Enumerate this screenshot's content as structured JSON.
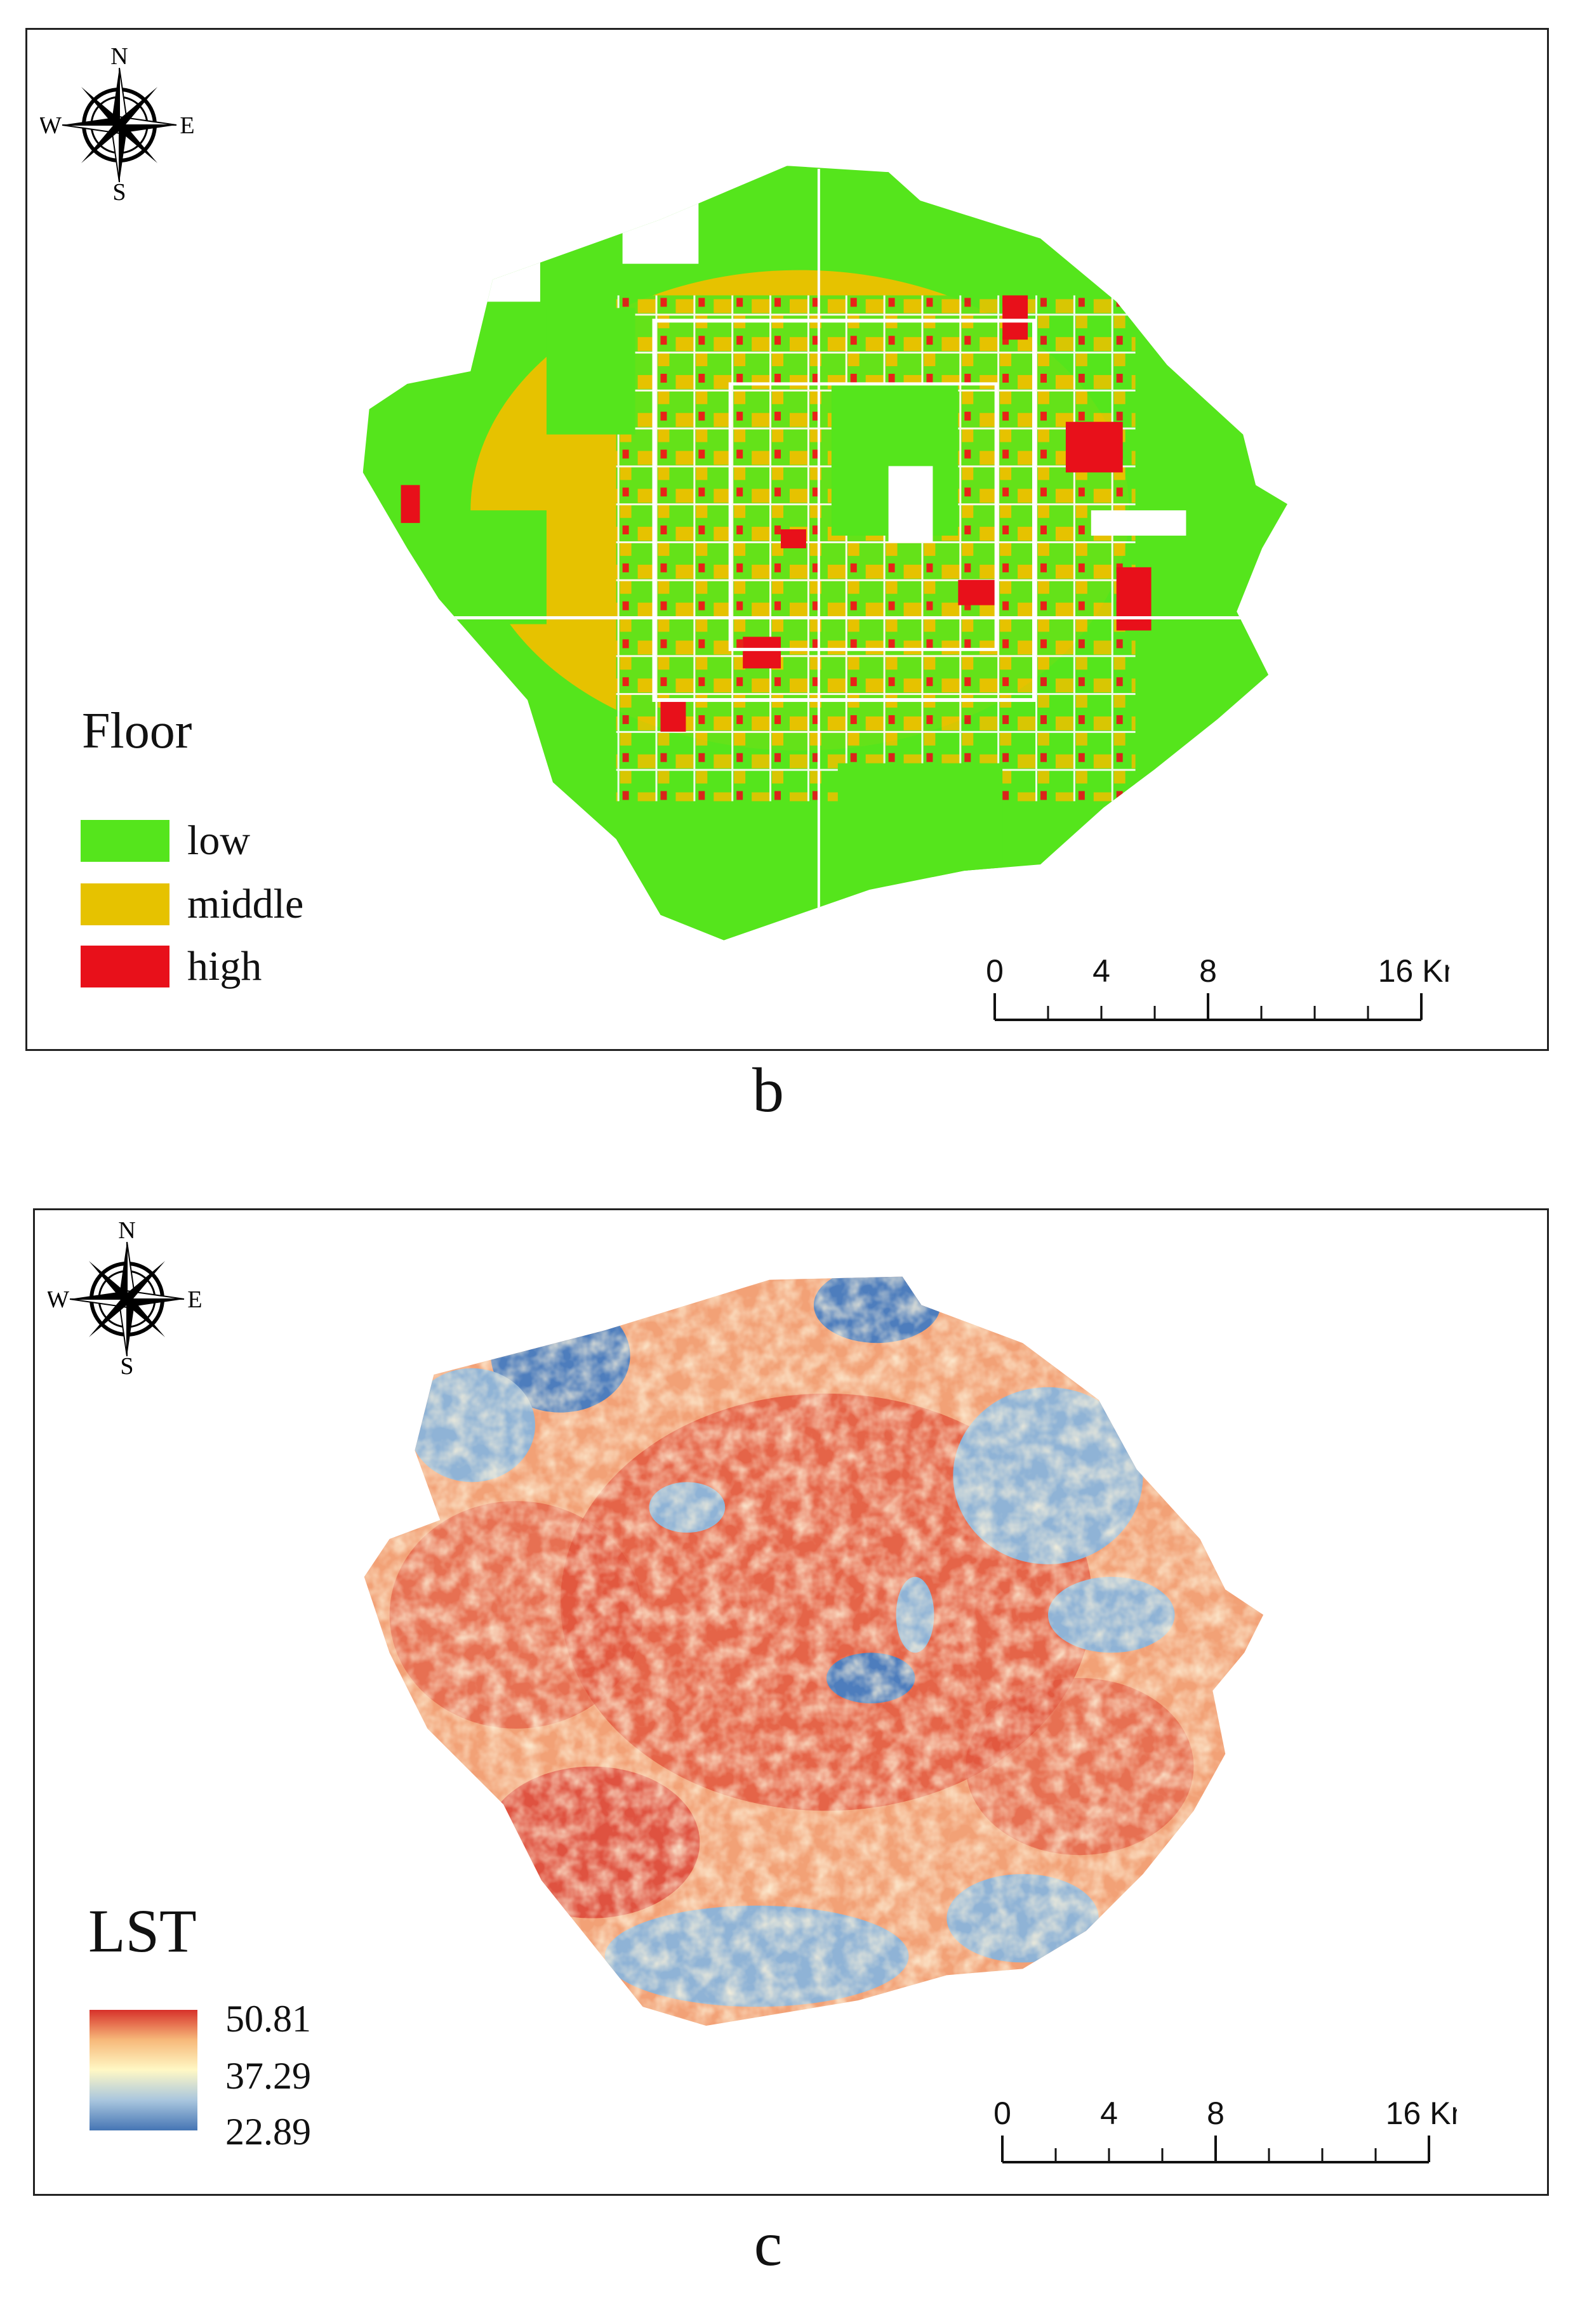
{
  "panels": [
    {
      "caption": "b",
      "legend": {
        "title": "Floor",
        "items": [
          {
            "label": "low",
            "color": "#55e51c"
          },
          {
            "label": "middle",
            "color": "#e6c200"
          },
          {
            "label": "high",
            "color": "#e8101a"
          }
        ]
      },
      "compass": {
        "n": "N",
        "s": "S",
        "e": "E",
        "w": "W"
      },
      "scalebar": {
        "ticks": [
          "0",
          "4",
          "8",
          "16 Km"
        ]
      }
    },
    {
      "caption": "c",
      "legend": {
        "title": "LST",
        "ramp_colors": [
          "#d7312a",
          "#f7b97a",
          "#fff8c5",
          "#a9c6de",
          "#4575b4"
        ],
        "max": "50.81",
        "mid": "37.29",
        "min": "22.89"
      },
      "compass": {
        "n": "N",
        "s": "S",
        "e": "E",
        "w": "W"
      },
      "scalebar": {
        "ticks": [
          "0",
          "4",
          "8",
          "16 Km"
        ]
      }
    }
  ],
  "map_colors": {
    "floor_low": "#55e51c",
    "floor_middle": "#e6c200",
    "floor_high": "#e8101a",
    "lst_hot": "#e0503a",
    "lst_warm": "#f2a176",
    "lst_mild": "#fde9b4",
    "lst_cool": "#8fb3d6",
    "lst_cold": "#4d7dbd"
  }
}
